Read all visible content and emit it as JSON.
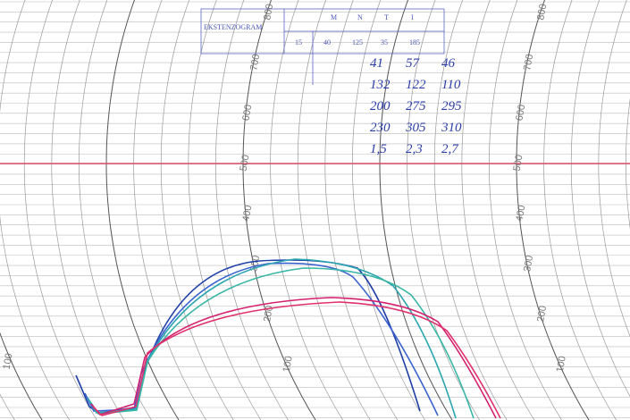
{
  "stamp": {
    "title": "EKSTENZOGRAM",
    "headers": [
      "M",
      "N",
      "T",
      "I"
    ],
    "values": [
      "15",
      "40",
      "125",
      "35",
      "185"
    ]
  },
  "handwritten_table": {
    "rows": [
      [
        "41",
        "57",
        "46"
      ],
      [
        "132",
        "122",
        "110"
      ],
      [
        "200",
        "275",
        "295"
      ],
      [
        "230",
        "305",
        "310"
      ],
      [
        "1,5",
        "2,3",
        "2,7"
      ]
    ]
  },
  "scale": {
    "labels": [
      "800",
      "700",
      "600",
      "500",
      "400",
      "300",
      "200",
      "100"
    ]
  }
}
